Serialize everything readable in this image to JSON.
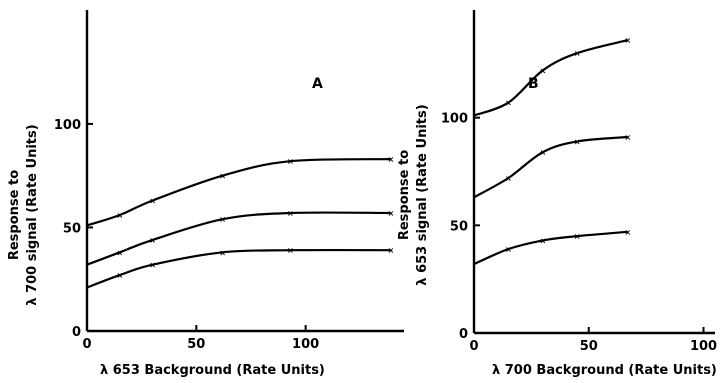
{
  "chart_data": [
    {
      "type": "line",
      "panel_label": "A",
      "xlabel": "λ 653  Background (Rate Units)",
      "ylabel_line1": "Response to",
      "ylabel_line2": "λ 700  signal (Rate Units)",
      "xlim": [
        0,
        145
      ],
      "ylim": [
        0,
        155
      ],
      "xticks": [
        0,
        50,
        100
      ],
      "yticks": [
        0,
        50,
        100
      ],
      "xtick_labels": [
        "0",
        "50",
        "100"
      ],
      "ytick_labels": [
        "0",
        "50",
        "100"
      ],
      "grid": false,
      "series": [
        {
          "intercept": 51,
          "x": [
            15,
            30,
            62,
            93,
            139
          ],
          "values": [
            56,
            63,
            75,
            82,
            83
          ]
        },
        {
          "intercept": 32,
          "x": [
            15,
            30,
            62,
            93,
            139
          ],
          "values": [
            38,
            44,
            54,
            57,
            57
          ]
        },
        {
          "intercept": 21,
          "x": [
            15,
            30,
            62,
            93,
            139
          ],
          "values": [
            27,
            32,
            38,
            39,
            39
          ]
        }
      ]
    },
    {
      "type": "line",
      "panel_label": "B",
      "xlabel": "λ 700  Background (Rate Units)",
      "ylabel_line1": "Response to",
      "ylabel_line2": "λ 653  signal (Rate Units)",
      "xlim": [
        0,
        105
      ],
      "ylim": [
        0,
        150
      ],
      "xticks": [
        0,
        50,
        100
      ],
      "yticks": [
        0,
        50,
        100
      ],
      "xtick_labels": [
        "0",
        "50",
        "100"
      ],
      "ytick_labels": [
        "0",
        "50",
        "100"
      ],
      "grid": false,
      "series": [
        {
          "intercept": 101,
          "x": [
            15,
            30,
            45,
            67
          ],
          "values": [
            107,
            122,
            130,
            136
          ]
        },
        {
          "intercept": 63,
          "x": [
            15,
            30,
            45,
            67
          ],
          "values": [
            72,
            84,
            89,
            91
          ]
        },
        {
          "intercept": 32,
          "x": [
            15,
            30,
            45,
            67
          ],
          "values": [
            39,
            43,
            45,
            47
          ]
        }
      ]
    }
  ]
}
